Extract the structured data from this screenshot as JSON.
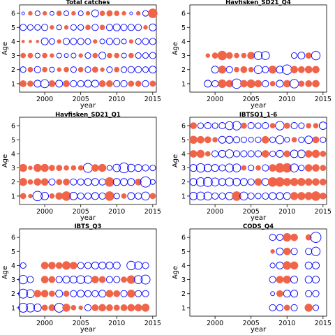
{
  "colors": {
    "positive": "#f0654a",
    "negative": "#0000ff",
    "axis": "#000000",
    "background": "#ffffff"
  },
  "chart_data": [
    {
      "type": "scatter",
      "title": "Total catches",
      "xlabel": "year",
      "ylabel": "Age",
      "xlim": [
        1996.5,
        2015.5
      ],
      "ylim": [
        0.4,
        6.6
      ],
      "xticks": [
        2000,
        2005,
        2010,
        2015
      ],
      "yticks": [
        1,
        2,
        3,
        4,
        5,
        6
      ],
      "grid": false,
      "years": [
        1997,
        1998,
        1999,
        2000,
        2001,
        2002,
        2003,
        2004,
        2005,
        2006,
        2007,
        2008,
        2009,
        2010,
        2011,
        2012,
        2013,
        2014,
        2015
      ],
      "residuals": {
        "6": [
          -0.1,
          0.2,
          -0.3,
          0.2,
          -0.2,
          0.3,
          -0.3,
          0.2,
          -0.3,
          0.2,
          -0.6,
          0.3,
          0.4,
          0.3,
          0.2,
          -0.1,
          0.2,
          -0.4,
          1.0
        ],
        "5": [
          -0.5,
          -0.4,
          -0.4,
          -0.5,
          0.2,
          -0.3,
          0.2,
          -0.4,
          -0.4,
          0.3,
          -0.5,
          0.3,
          -0.5,
          -0.6,
          -0.5,
          -0.5,
          -0.5,
          0.2,
          -0.6
        ],
        "4": [
          0.1,
          0.1,
          0.1,
          -0.6,
          -0.4,
          0.2,
          -0.5,
          -0.5,
          -0.5,
          -0.4,
          0.2,
          -0.3,
          -0.5,
          -0.5,
          -0.3,
          0.2,
          -0.4,
          -0.5,
          -0.5
        ],
        "3": [
          0.3,
          0.3,
          -0.3,
          0.3,
          0.2,
          -0.3,
          -0.2,
          -0.3,
          0.2,
          -0.4,
          0.3,
          -0.6,
          0.3,
          0.3,
          -0.3,
          0.3,
          -0.4,
          -0.4,
          -0.5
        ],
        "2": [
          -0.4,
          0.3,
          -0.5,
          0.3,
          -0.3,
          0.2,
          0.3,
          -0.4,
          0.3,
          -0.4,
          0.4,
          0.2,
          -0.4,
          0.3,
          -0.4,
          -0.5,
          -0.5,
          -0.4,
          -0.6
        ],
        "1": [
          0.5,
          0.4,
          -0.6,
          -0.8,
          0.5,
          -0.6,
          0.5,
          -0.5,
          -0.5,
          -0.6,
          -0.6,
          0.5,
          0.5,
          -0.5,
          -0.5,
          0.4,
          0.4,
          -0.5,
          0.4
        ]
      }
    },
    {
      "type": "scatter",
      "title": "Havfisken_SD21_Q4",
      "xlabel": "year",
      "ylabel": "Age",
      "xlim": [
        1996.5,
        2015.5
      ],
      "ylim": [
        0.4,
        6.6
      ],
      "xticks": [
        2000,
        2005,
        2010,
        2015
      ],
      "yticks": [
        1,
        2,
        3,
        4,
        5,
        6
      ],
      "grid": false,
      "years": [
        1999,
        2000,
        2001,
        2002,
        2003,
        2004,
        2005,
        2006,
        2007,
        2008,
        2009,
        2010,
        2011,
        2012,
        2013,
        2014
      ],
      "residuals": {
        "3": [
          0.2,
          0.4,
          1.0,
          0.5,
          0.3,
          0.3,
          0.6,
          -0.8,
          -0.8,
          null,
          null,
          null,
          -0.4,
          -0.6,
          0.4,
          -0.9
        ],
        "2": [
          null,
          -0.6,
          0.7,
          -0.5,
          0.3,
          0.5,
          0.3,
          -0.8,
          -0.5,
          0.7,
          -0.6,
          -1.1,
          0.6,
          0.5,
          0.6,
          0.6
        ],
        "1": [
          -0.6,
          -0.5,
          0.8,
          0.6,
          -1.1,
          0.6,
          0.8,
          0.6,
          -0.5,
          0.3,
          -0.6,
          0.6,
          -0.9,
          0.4,
          0.5,
          0.6
        ]
      }
    },
    {
      "type": "scatter",
      "title": "Havfisken_SD21_Q1",
      "xlabel": "year",
      "ylabel": "Age",
      "xlim": [
        1996.5,
        2015.5
      ],
      "ylim": [
        0.4,
        6.6
      ],
      "xticks": [
        2000,
        2005,
        2010,
        2015
      ],
      "yticks": [
        1,
        2,
        3,
        4,
        5,
        6
      ],
      "grid": false,
      "years": [
        1997,
        1998,
        1999,
        2000,
        2001,
        2002,
        2003,
        2004,
        2005,
        2006,
        2007,
        2008,
        2009,
        2010,
        2011,
        2012,
        2013,
        2014,
        2015
      ],
      "residuals": {
        "3": [
          0.7,
          0.2,
          0.7,
          0.7,
          0.4,
          0.4,
          0.3,
          0.3,
          0.3,
          -1.0,
          0.6,
          0.7,
          -0.3,
          -0.7,
          -1.2,
          -0.7,
          -0.6,
          -0.5,
          -0.4
        ],
        "2": [
          0.7,
          0.3,
          0.6,
          0.6,
          -0.5,
          0.4,
          0.5,
          -0.5,
          -0.5,
          -0.6,
          -0.6,
          -0.5,
          1.0,
          -0.6,
          -0.6,
          -0.6,
          0.5,
          -1.3,
          -0.3
        ],
        "1": [
          0.4,
          0.2,
          -1.1,
          -0.7,
          0.3,
          0.6,
          1.0,
          -0.7,
          -0.5,
          -0.5,
          -0.6,
          -0.5,
          1.0,
          -0.4,
          0.3,
          -0.6,
          -0.5,
          -0.8,
          0.4
        ]
      }
    },
    {
      "type": "scatter",
      "title": "IBTSQ1_1-6",
      "xlabel": "year",
      "ylabel": "Age",
      "xlim": [
        1996.5,
        2015.5
      ],
      "ylim": [
        0.4,
        6.6
      ],
      "xticks": [
        2000,
        2005,
        2010,
        2015
      ],
      "yticks": [
        1,
        2,
        3,
        4,
        5,
        6
      ],
      "grid": false,
      "years": [
        1997,
        1998,
        1999,
        2000,
        2001,
        2002,
        2003,
        2004,
        2005,
        2006,
        2007,
        2008,
        2009,
        2010,
        2011,
        2012,
        2013,
        2014,
        2015
      ],
      "residuals": {
        "6": [
          0.5,
          -0.4,
          -0.5,
          -0.4,
          -0.5,
          -0.8,
          -0.9,
          0.4,
          -0.5,
          -0.4,
          -0.5,
          0.3,
          -0.9,
          0.4,
          -0.5,
          -0.4,
          0.3,
          0.3,
          -0.7
        ],
        "5": [
          0.7,
          0.6,
          0.5,
          0.3,
          -0.6,
          -0.6,
          -0.5,
          -0.4,
          -0.3,
          -0.4,
          0.6,
          -0.4,
          -0.8,
          -0.3,
          0.3,
          -0.4,
          -0.7,
          0.5,
          -0.4
        ],
        "4": [
          0.6,
          0.7,
          0.3,
          -0.5,
          -0.6,
          -0.8,
          -0.5,
          -0.5,
          -0.5,
          -0.5,
          0.6,
          -0.4,
          -0.6,
          0.5,
          -0.7,
          -0.7,
          0.6,
          0.7,
          0.4
        ],
        "3": [
          -0.6,
          -0.9,
          -0.7,
          -0.6,
          -0.5,
          -0.8,
          -0.8,
          0.3,
          -0.4,
          0.3,
          -0.5,
          0.6,
          1.0,
          1.0,
          -0.8,
          -0.4,
          0.6,
          0.6,
          0.4
        ],
        "2": [
          -0.6,
          -0.9,
          -1.0,
          -0.8,
          -0.6,
          -0.8,
          -0.7,
          -0.6,
          -0.5,
          0.6,
          -0.6,
          1.0,
          1.0,
          0.7,
          0.7,
          0.7,
          0.6,
          0.6,
          0.5
        ],
        "1": [
          -0.7,
          -0.8,
          -0.8,
          -0.5,
          -0.5,
          -0.7,
          1.0,
          -0.8,
          -0.5,
          -0.4,
          -0.5,
          -0.6,
          -0.6,
          -0.6,
          0.7,
          0.7,
          0.7,
          1.0,
          0.5
        ]
      }
    },
    {
      "type": "scatter",
      "title": "IBTS_Q3",
      "xlabel": "year",
      "ylabel": "Age",
      "xlim": [
        1996.5,
        2015.5
      ],
      "ylim": [
        0.4,
        6.6
      ],
      "xticks": [
        2000,
        2005,
        2010,
        2015
      ],
      "yticks": [
        1,
        2,
        3,
        4,
        5,
        6
      ],
      "grid": false,
      "years": [
        1997,
        1998,
        1999,
        2000,
        2001,
        2002,
        2003,
        2004,
        2005,
        2006,
        2007,
        2008,
        2009,
        2010,
        2011,
        2012,
        2013,
        2014
      ],
      "residuals": {
        "4": [
          -0.4,
          null,
          null,
          0.6,
          0.6,
          0.5,
          0.8,
          0.6,
          -0.5,
          -0.5,
          -0.6,
          -0.6,
          -0.6,
          -0.6,
          null,
          -0.9,
          -0.7,
          -0.5
        ],
        "3": [
          -0.9,
          -0.5,
          null,
          0.6,
          0.5,
          -0.5,
          -0.6,
          -0.6,
          -0.8,
          -0.7,
          0.6,
          0.5,
          -0.5,
          -0.5,
          0.4,
          0.8,
          -0.8,
          -1.0
        ],
        "2": [
          -1.0,
          -0.8,
          0.6,
          0.6,
          0.4,
          -0.6,
          0.4,
          -0.5,
          -0.6,
          -0.5,
          -0.5,
          -0.6,
          0.6,
          0.5,
          -0.5,
          0.7,
          -0.5,
          -0.5
        ],
        "1": [
          -1.0,
          -0.9,
          -0.7,
          0.4,
          0.5,
          -1.0,
          0.7,
          0.3,
          0.2,
          -0.5,
          0.5,
          0.6,
          0.5,
          0.4,
          0.5,
          0.6,
          0.6,
          0.7
        ]
      }
    },
    {
      "type": "scatter",
      "title": "CODS_Q4",
      "xlabel": "year",
      "ylabel": "Age",
      "xlim": [
        1996.5,
        2015.5
      ],
      "ylim": [
        0.4,
        6.6
      ],
      "xticks": [
        2000,
        2005,
        2010,
        2015
      ],
      "yticks": [
        1,
        2,
        3,
        4,
        5,
        6
      ],
      "grid": false,
      "years": [
        2008,
        2009,
        2010,
        2011,
        2013,
        2014
      ],
      "residuals": {
        "6": [
          -0.5,
          -0.5,
          0.8,
          0.6,
          0.4,
          -1.3
        ],
        "5": [
          0.2,
          -0.6,
          0.6,
          -0.5,
          -0.5,
          -0.9
        ],
        "4": [
          -0.3,
          -0.6,
          0.8,
          0.7,
          -0.6,
          -0.6
        ],
        "3": [
          -0.5,
          0.6,
          0.7,
          -0.6,
          -0.6,
          -0.6
        ],
        "2": [
          -0.2,
          0.5,
          -0.6,
          -0.6,
          -0.5,
          -0.5
        ],
        "1": [
          -0.5,
          -0.5,
          0.4,
          -0.5,
          0.7,
          -0.4
        ]
      }
    }
  ]
}
